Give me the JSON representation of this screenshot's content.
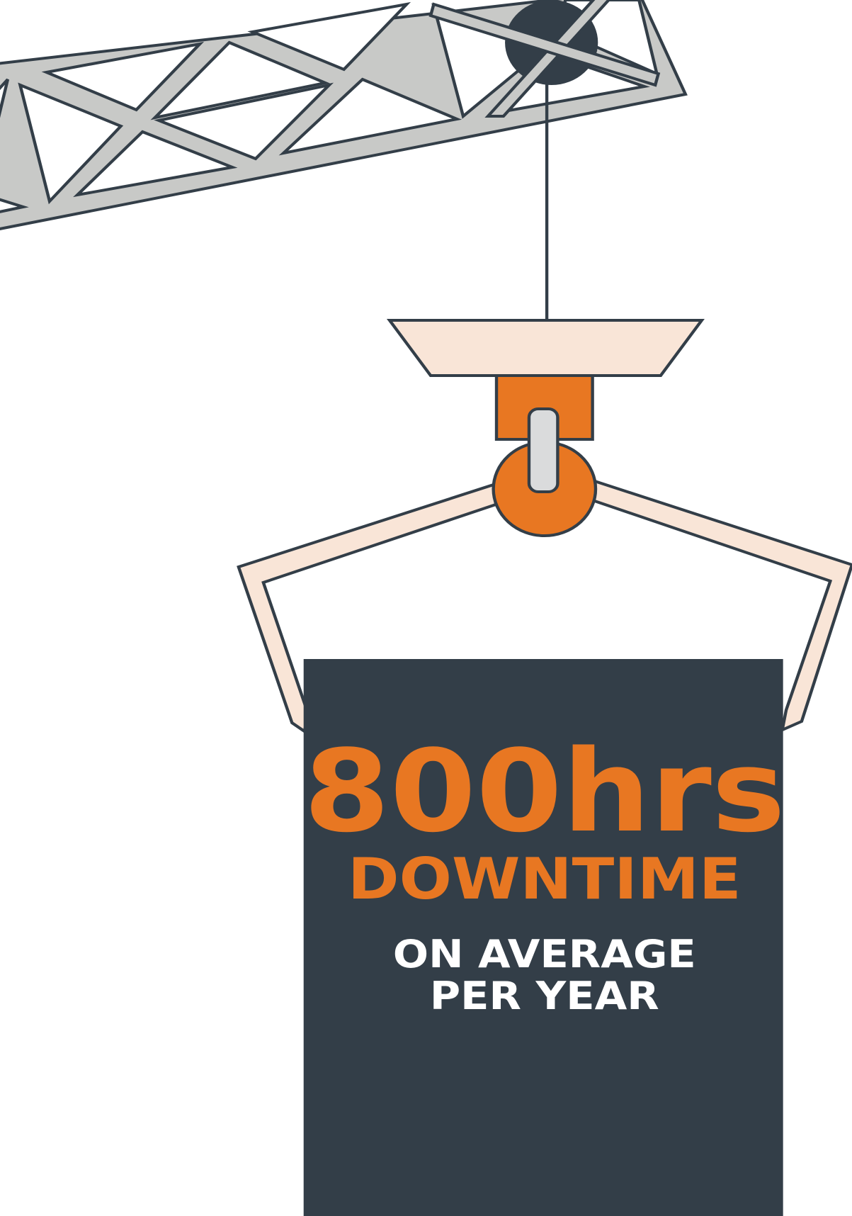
{
  "headline": "800hrs",
  "label": "DOWNTIME",
  "caption": [
    "ON AVERAGE",
    "PER YEAR"
  ]
}
